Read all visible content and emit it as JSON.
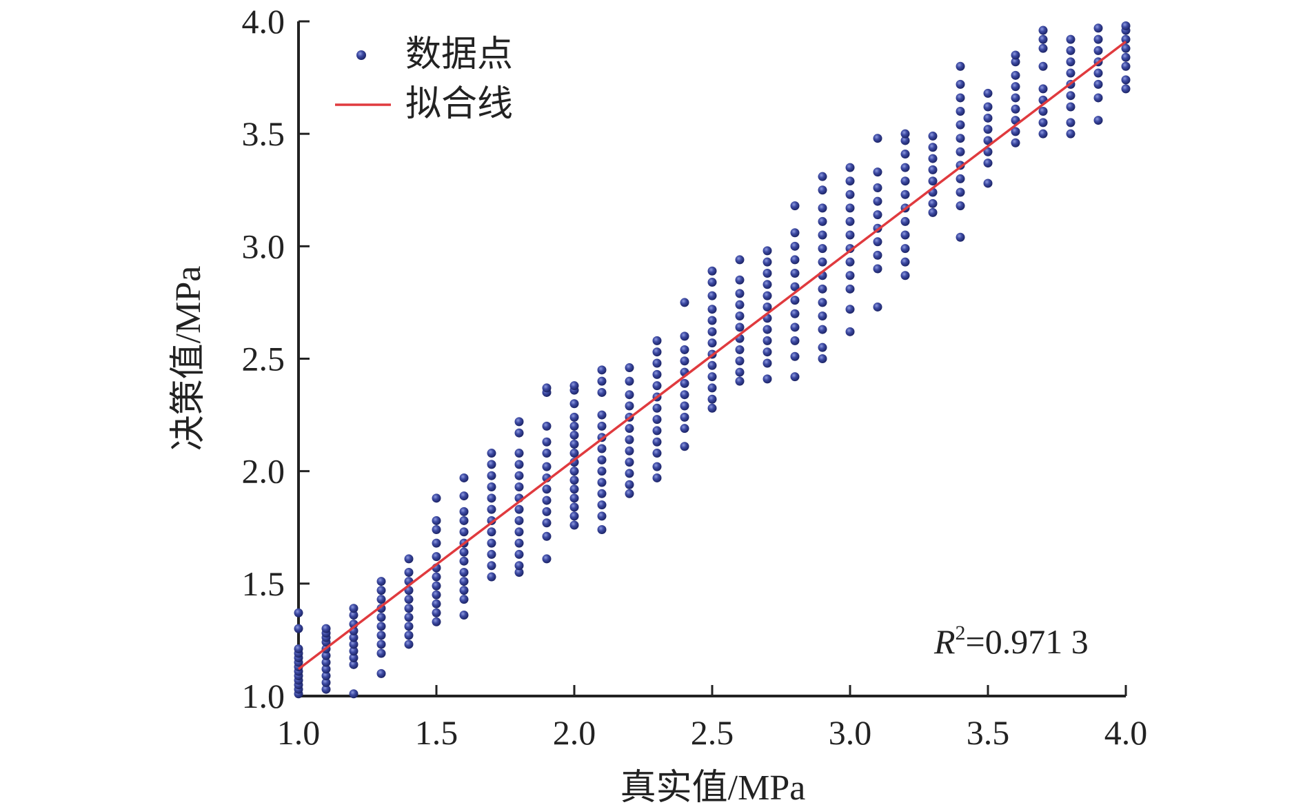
{
  "chart_data": {
    "type": "scatter",
    "xlabel": "真实值/MPa",
    "ylabel": "决策值/MPa",
    "xlim": [
      1.0,
      4.0
    ],
    "ylim": [
      1.0,
      4.0
    ],
    "x_ticks": [
      "1.0",
      "1.5",
      "2.0",
      "2.5",
      "3.0",
      "3.5",
      "4.0"
    ],
    "y_ticks": [
      "1.0",
      "1.5",
      "2.0",
      "2.5",
      "3.0",
      "3.5",
      "4.0"
    ],
    "legend": {
      "placement": "top-left",
      "points_label": "数据点",
      "line_label": "拟合线"
    },
    "annotation": {
      "r_symbol": "R",
      "superscript": "2",
      "value_text": "=0.971 3"
    },
    "colors": {
      "points": "#2e3a8c",
      "fit_line": "#e03a3e",
      "axis": "#222222"
    },
    "fit_line": {
      "x": [
        1.0,
        4.0
      ],
      "y": [
        1.12,
        3.91
      ]
    },
    "series": [
      {
        "name": "数据点",
        "x": 1.0,
        "values": [
          1.01,
          1.03,
          1.05,
          1.07,
          1.09,
          1.11,
          1.13,
          1.15,
          1.17,
          1.19,
          1.21,
          1.3,
          1.37
        ]
      },
      {
        "name": "数据点",
        "x": 1.1,
        "values": [
          1.03,
          1.06,
          1.09,
          1.12,
          1.15,
          1.18,
          1.21,
          1.24,
          1.26,
          1.28,
          1.3
        ]
      },
      {
        "name": "数据点",
        "x": 1.2,
        "values": [
          1.01,
          1.14,
          1.17,
          1.2,
          1.23,
          1.26,
          1.29,
          1.32,
          1.36,
          1.39
        ]
      },
      {
        "name": "数据点",
        "x": 1.3,
        "values": [
          1.1,
          1.19,
          1.23,
          1.27,
          1.31,
          1.35,
          1.39,
          1.43,
          1.47,
          1.51
        ]
      },
      {
        "name": "数据点",
        "x": 1.4,
        "values": [
          1.23,
          1.27,
          1.31,
          1.35,
          1.39,
          1.43,
          1.47,
          1.51,
          1.55,
          1.61
        ]
      },
      {
        "name": "数据点",
        "x": 1.5,
        "values": [
          1.33,
          1.37,
          1.41,
          1.45,
          1.49,
          1.53,
          1.57,
          1.62,
          1.68,
          1.74,
          1.78,
          1.88
        ]
      },
      {
        "name": "数据点",
        "x": 1.6,
        "values": [
          1.36,
          1.43,
          1.47,
          1.51,
          1.55,
          1.6,
          1.64,
          1.68,
          1.73,
          1.78,
          1.82,
          1.89,
          1.97
        ]
      },
      {
        "name": "数据点",
        "x": 1.7,
        "values": [
          1.53,
          1.58,
          1.63,
          1.68,
          1.73,
          1.78,
          1.83,
          1.88,
          1.93,
          1.98,
          2.03,
          2.08
        ]
      },
      {
        "name": "数据点",
        "x": 1.8,
        "values": [
          1.55,
          1.58,
          1.63,
          1.68,
          1.73,
          1.78,
          1.83,
          1.88,
          1.93,
          1.98,
          2.03,
          2.08,
          2.17,
          2.22
        ]
      },
      {
        "name": "数据点",
        "x": 1.9,
        "values": [
          1.61,
          1.71,
          1.77,
          1.82,
          1.87,
          1.92,
          1.97,
          2.02,
          2.08,
          2.13,
          2.2,
          2.35,
          2.37
        ]
      },
      {
        "name": "数据点",
        "x": 2.0,
        "values": [
          1.76,
          1.8,
          1.84,
          1.88,
          1.92,
          1.96,
          2.0,
          2.04,
          2.08,
          2.12,
          2.16,
          2.2,
          2.24,
          2.3,
          2.36,
          2.38
        ]
      },
      {
        "name": "数据点",
        "x": 2.1,
        "values": [
          1.74,
          1.8,
          1.85,
          1.9,
          1.95,
          2.0,
          2.05,
          2.1,
          2.15,
          2.2,
          2.25,
          2.35,
          2.4,
          2.45
        ]
      },
      {
        "name": "数据点",
        "x": 2.2,
        "values": [
          1.9,
          1.94,
          1.99,
          2.04,
          2.09,
          2.14,
          2.19,
          2.24,
          2.29,
          2.34,
          2.4,
          2.46
        ]
      },
      {
        "name": "数据点",
        "x": 2.3,
        "values": [
          1.97,
          2.02,
          2.08,
          2.13,
          2.18,
          2.23,
          2.28,
          2.33,
          2.38,
          2.43,
          2.48,
          2.53,
          2.58
        ]
      },
      {
        "name": "数据点",
        "x": 2.4,
        "values": [
          2.11,
          2.19,
          2.24,
          2.29,
          2.34,
          2.39,
          2.44,
          2.49,
          2.54,
          2.6,
          2.75
        ]
      },
      {
        "name": "数据点",
        "x": 2.5,
        "values": [
          2.28,
          2.32,
          2.37,
          2.42,
          2.47,
          2.52,
          2.57,
          2.62,
          2.67,
          2.72,
          2.78,
          2.84,
          2.89
        ]
      },
      {
        "name": "数据点",
        "x": 2.6,
        "values": [
          2.4,
          2.44,
          2.49,
          2.54,
          2.59,
          2.64,
          2.69,
          2.74,
          2.79,
          2.85,
          2.94
        ]
      },
      {
        "name": "数据点",
        "x": 2.7,
        "values": [
          2.41,
          2.48,
          2.53,
          2.58,
          2.63,
          2.68,
          2.73,
          2.78,
          2.83,
          2.88,
          2.93,
          2.98
        ]
      },
      {
        "name": "数据点",
        "x": 2.8,
        "values": [
          2.42,
          2.51,
          2.58,
          2.64,
          2.7,
          2.76,
          2.82,
          2.88,
          2.94,
          3.0,
          3.06,
          3.18
        ]
      },
      {
        "name": "数据点",
        "x": 2.9,
        "values": [
          2.5,
          2.55,
          2.63,
          2.69,
          2.75,
          2.81,
          2.87,
          2.93,
          2.99,
          3.05,
          3.11,
          3.17,
          3.25,
          3.31
        ]
      },
      {
        "name": "数据点",
        "x": 3.0,
        "values": [
          2.62,
          2.72,
          2.81,
          2.87,
          2.93,
          2.99,
          3.05,
          3.11,
          3.17,
          3.23,
          3.29,
          3.35
        ]
      },
      {
        "name": "数据点",
        "x": 3.1,
        "values": [
          2.73,
          2.9,
          2.96,
          3.02,
          3.08,
          3.14,
          3.2,
          3.26,
          3.33,
          3.48
        ]
      },
      {
        "name": "数据点",
        "x": 3.2,
        "values": [
          2.87,
          2.93,
          2.99,
          3.05,
          3.11,
          3.17,
          3.23,
          3.29,
          3.35,
          3.41,
          3.47,
          3.5
        ]
      },
      {
        "name": "数据点",
        "x": 3.3,
        "values": [
          3.15,
          3.19,
          3.24,
          3.29,
          3.34,
          3.39,
          3.44,
          3.49
        ]
      },
      {
        "name": "数据点",
        "x": 3.4,
        "values": [
          3.04,
          3.18,
          3.24,
          3.3,
          3.36,
          3.42,
          3.48,
          3.54,
          3.6,
          3.66,
          3.72,
          3.8
        ]
      },
      {
        "name": "数据点",
        "x": 3.5,
        "values": [
          3.28,
          3.37,
          3.42,
          3.47,
          3.52,
          3.57,
          3.62,
          3.68
        ]
      },
      {
        "name": "数据点",
        "x": 3.6,
        "values": [
          3.46,
          3.51,
          3.56,
          3.61,
          3.66,
          3.71,
          3.76,
          3.82,
          3.85
        ]
      },
      {
        "name": "数据点",
        "x": 3.7,
        "values": [
          3.5,
          3.55,
          3.6,
          3.65,
          3.7,
          3.8,
          3.88,
          3.92,
          3.96
        ]
      },
      {
        "name": "数据点",
        "x": 3.8,
        "values": [
          3.5,
          3.55,
          3.62,
          3.67,
          3.72,
          3.77,
          3.82,
          3.87,
          3.92
        ]
      },
      {
        "name": "数据点",
        "x": 3.9,
        "values": [
          3.56,
          3.66,
          3.72,
          3.77,
          3.82,
          3.87,
          3.92,
          3.97
        ]
      },
      {
        "name": "数据点",
        "x": 4.0,
        "values": [
          3.7,
          3.74,
          3.8,
          3.84,
          3.88,
          3.92,
          3.96,
          3.98
        ]
      }
    ]
  }
}
